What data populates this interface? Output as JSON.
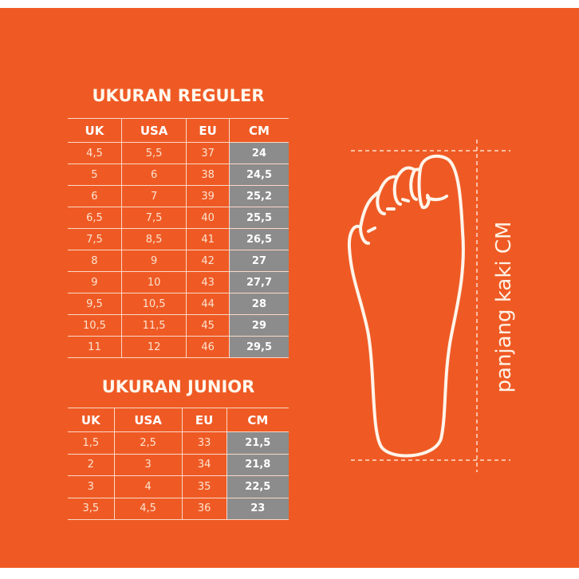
{
  "colors": {
    "background": "#ef5a24",
    "cm_cell": "#8c8c8c",
    "text": "#ffffff"
  },
  "regular": {
    "title": "UKURAN REGULER",
    "headers": [
      "UK",
      "USA",
      "EU",
      "CM"
    ],
    "rows": [
      [
        "4,5",
        "5,5",
        "37",
        "24"
      ],
      [
        "5",
        "6",
        "38",
        "24,5"
      ],
      [
        "6",
        "7",
        "39",
        "25,2"
      ],
      [
        "6,5",
        "7,5",
        "40",
        "25,5"
      ],
      [
        "7,5",
        "8,5",
        "41",
        "26,5"
      ],
      [
        "8",
        "9",
        "42",
        "27"
      ],
      [
        "9",
        "10",
        "43",
        "27,7"
      ],
      [
        "9,5",
        "10,5",
        "44",
        "28"
      ],
      [
        "10,5",
        "11,5",
        "45",
        "29"
      ],
      [
        "11",
        "12",
        "46",
        "29,5"
      ]
    ]
  },
  "junior": {
    "title": "UKURAN JUNIOR",
    "headers": [
      "UK",
      "USA",
      "EU",
      "CM"
    ],
    "rows": [
      [
        "1,5",
        "2,5",
        "33",
        "21,5"
      ],
      [
        "2",
        "3",
        "34",
        "21,8"
      ],
      [
        "3",
        "4",
        "35",
        "22,5"
      ],
      [
        "3,5",
        "4,5",
        "36",
        "23"
      ]
    ]
  },
  "foot": {
    "icon": "foot-outline-icon",
    "measure_label": "panjang kaki CM"
  }
}
